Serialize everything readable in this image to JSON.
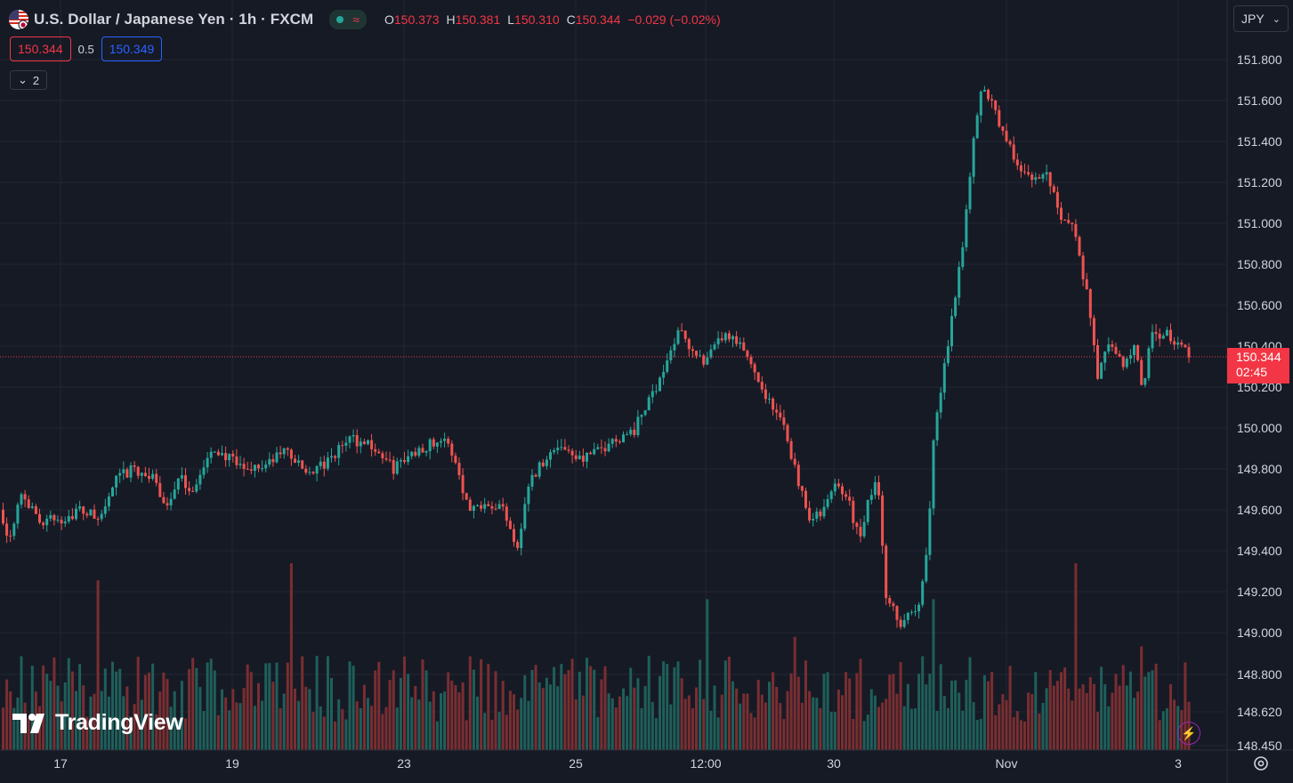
{
  "header": {
    "symbol": "U.S. Dollar / Japanese Yen · 1h · FXCM",
    "flag_icon": "us-japan-flag",
    "ohlc": [
      {
        "key": "O",
        "value": "150.373"
      },
      {
        "key": "H",
        "value": "150.381"
      },
      {
        "key": "L",
        "value": "150.310"
      },
      {
        "key": "C",
        "value": "150.344"
      },
      {
        "key": "",
        "value": "−0.029 (−0.02%)"
      }
    ]
  },
  "quote": {
    "sell": "150.344",
    "spread": "0.5",
    "buy": "150.349"
  },
  "indicators_toggle": {
    "count": "2"
  },
  "currency": {
    "label": "JPY"
  },
  "last_price": {
    "price": "150.344",
    "countdown": "02:45"
  },
  "logo": {
    "text": "TradingView"
  },
  "colors": {
    "up": "#26a69a",
    "down": "#ef5350",
    "background": "#161a25",
    "grid": "#232632",
    "last_line": "#f23645"
  },
  "chart_data": {
    "type": "candlestick",
    "title": "U.S. Dollar / Japanese Yen · 1h · FXCM",
    "ylim": [
      148.38,
      151.98
    ],
    "y_ticks": [
      "151.800",
      "151.600",
      "151.400",
      "151.200",
      "151.000",
      "150.800",
      "150.600",
      "150.400",
      "150.200",
      "150.000",
      "149.800",
      "149.600",
      "149.400",
      "149.200",
      "149.000",
      "148.800",
      "148.620",
      "148.450"
    ],
    "x_ticks": [
      "17",
      "19",
      "23",
      "25",
      "12:00",
      "30",
      "Nov",
      "3"
    ],
    "grid": true,
    "last_price_line": 150.344,
    "path_anchors": [
      [
        0,
        149.6
      ],
      [
        8,
        149.45
      ],
      [
        22,
        149.7
      ],
      [
        40,
        149.55
      ],
      [
        65,
        149.55
      ],
      [
        90,
        149.6
      ],
      [
        110,
        149.55
      ],
      [
        130,
        149.75
      ],
      [
        150,
        149.8
      ],
      [
        170,
        149.75
      ],
      [
        185,
        149.62
      ],
      [
        200,
        149.75
      ],
      [
        215,
        149.7
      ],
      [
        240,
        149.9
      ],
      [
        270,
        149.8
      ],
      [
        300,
        149.82
      ],
      [
        320,
        149.9
      ],
      [
        340,
        149.78
      ],
      [
        365,
        149.82
      ],
      [
        390,
        149.95
      ],
      [
        415,
        149.92
      ],
      [
        440,
        149.8
      ],
      [
        470,
        149.9
      ],
      [
        495,
        149.95
      ],
      [
        510,
        149.85
      ],
      [
        525,
        149.6
      ],
      [
        545,
        149.65
      ],
      [
        565,
        149.6
      ],
      [
        580,
        149.42
      ],
      [
        592,
        149.72
      ],
      [
        610,
        149.85
      ],
      [
        630,
        149.92
      ],
      [
        650,
        149.85
      ],
      [
        670,
        149.88
      ],
      [
        690,
        149.95
      ],
      [
        710,
        149.98
      ],
      [
        730,
        150.15
      ],
      [
        750,
        150.35
      ],
      [
        765,
        150.5
      ],
      [
        775,
        150.38
      ],
      [
        790,
        150.3
      ],
      [
        810,
        150.45
      ],
      [
        830,
        150.4
      ],
      [
        845,
        150.3
      ],
      [
        860,
        150.15
      ],
      [
        880,
        150.0
      ],
      [
        895,
        149.75
      ],
      [
        910,
        149.55
      ],
      [
        925,
        149.6
      ],
      [
        940,
        149.75
      ],
      [
        955,
        149.6
      ],
      [
        965,
        149.45
      ],
      [
        975,
        149.65
      ],
      [
        985,
        149.75
      ],
      [
        995,
        149.15
      ],
      [
        1010,
        149.05
      ],
      [
        1030,
        149.1
      ],
      [
        1040,
        149.4
      ],
      [
        1048,
        149.95
      ],
      [
        1058,
        150.25
      ],
      [
        1070,
        150.6
      ],
      [
        1080,
        150.9
      ],
      [
        1090,
        151.3
      ],
      [
        1100,
        151.65
      ],
      [
        1112,
        151.62
      ],
      [
        1125,
        151.45
      ],
      [
        1140,
        151.3
      ],
      [
        1160,
        151.2
      ],
      [
        1175,
        151.25
      ],
      [
        1190,
        151.05
      ],
      [
        1205,
        150.98
      ],
      [
        1220,
        150.65
      ],
      [
        1232,
        150.25
      ],
      [
        1245,
        150.42
      ],
      [
        1260,
        150.3
      ],
      [
        1275,
        150.4
      ],
      [
        1283,
        150.15
      ],
      [
        1292,
        150.45
      ],
      [
        1310,
        150.45
      ],
      [
        1325,
        150.4
      ],
      [
        1336,
        150.344
      ]
    ],
    "volume_spikes": [
      {
        "x": 108,
        "v": 0.9
      },
      {
        "x": 325,
        "v": 0.99
      },
      {
        "x": 793,
        "v": 0.8
      },
      {
        "x": 997,
        "v": 0.4
      },
      {
        "x": 1047,
        "v": 0.8
      },
      {
        "x": 1204,
        "v": 0.99
      },
      {
        "x": 888,
        "v": 0.6
      },
      {
        "x": 1278,
        "v": 0.55
      }
    ]
  }
}
